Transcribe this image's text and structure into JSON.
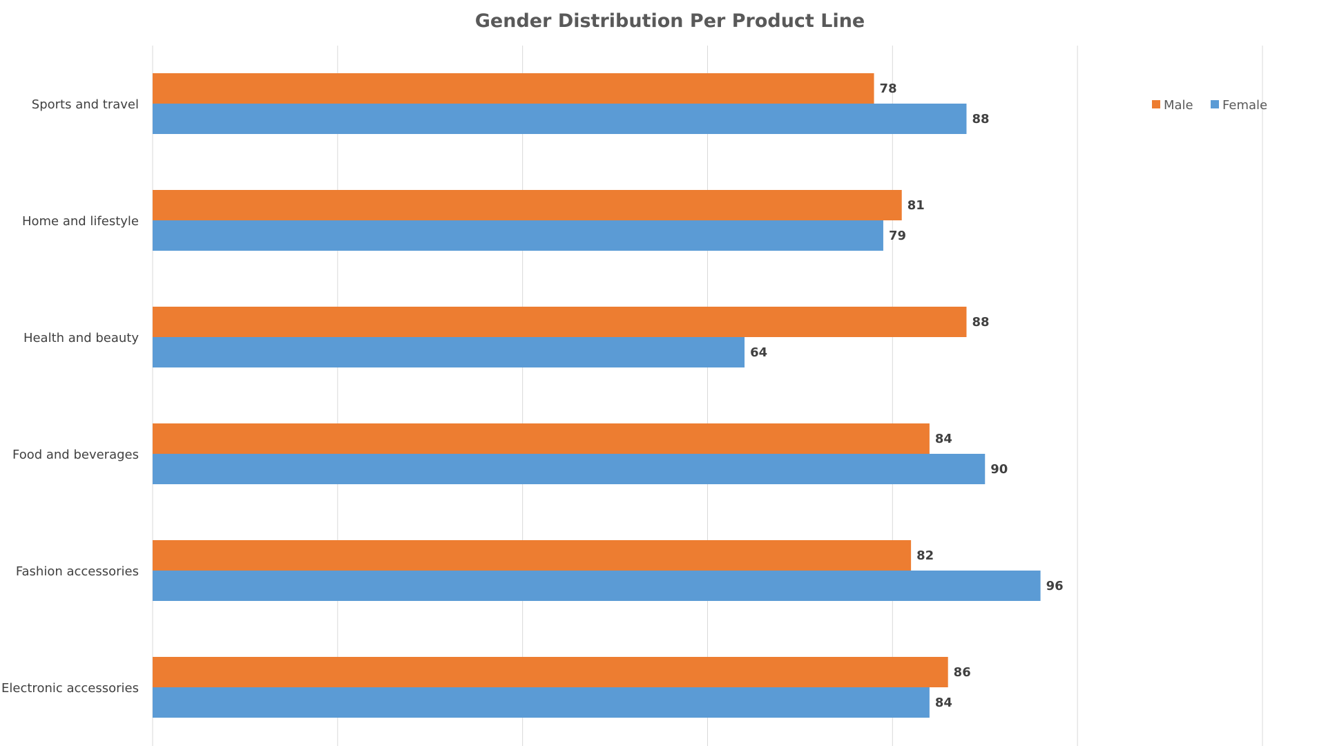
{
  "chart_data": {
    "type": "bar",
    "orientation": "horizontal",
    "title": "Gender Distribution Per Product Line",
    "categories": [
      "Sports and travel",
      "Home and lifestyle",
      "Health and beauty",
      "Food and beverages",
      "Fashion accessories",
      "Electronic accessories"
    ],
    "series": [
      {
        "name": "Male",
        "color": "#ED7D31",
        "values": [
          78,
          81,
          88,
          84,
          82,
          86
        ]
      },
      {
        "name": "Female",
        "color": "#5B9BD5",
        "values": [
          88,
          79,
          64,
          90,
          96,
          84
        ]
      }
    ],
    "xlim": [
      0,
      120
    ],
    "x_gridline_step": 20,
    "x_tick_labels_shown": false,
    "grid": true,
    "data_labels": true,
    "legend_position": "top-right"
  }
}
